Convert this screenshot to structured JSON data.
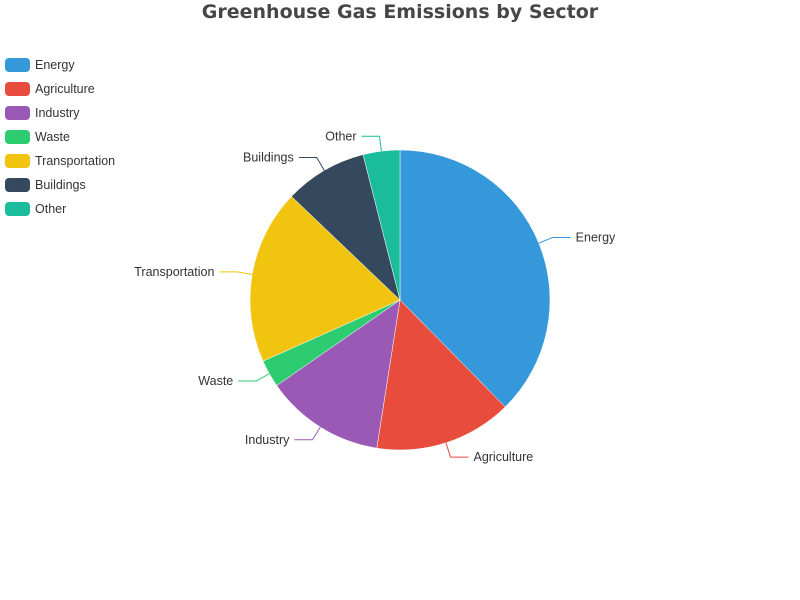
{
  "chart_data": {
    "type": "pie",
    "title": "Greenhouse Gas Emissions by Sector",
    "legend_position": "top-left",
    "categories": [
      "Energy",
      "Agriculture",
      "Industry",
      "Waste",
      "Transportation",
      "Buildings",
      "Other"
    ],
    "values": [
      38,
      15,
      13,
      3,
      19,
      9,
      4
    ],
    "colors": [
      "#3498db",
      "#e74c3c",
      "#9b59b6",
      "#2ecc71",
      "#f1c40f",
      "#34495e",
      "#1abc9c"
    ]
  }
}
